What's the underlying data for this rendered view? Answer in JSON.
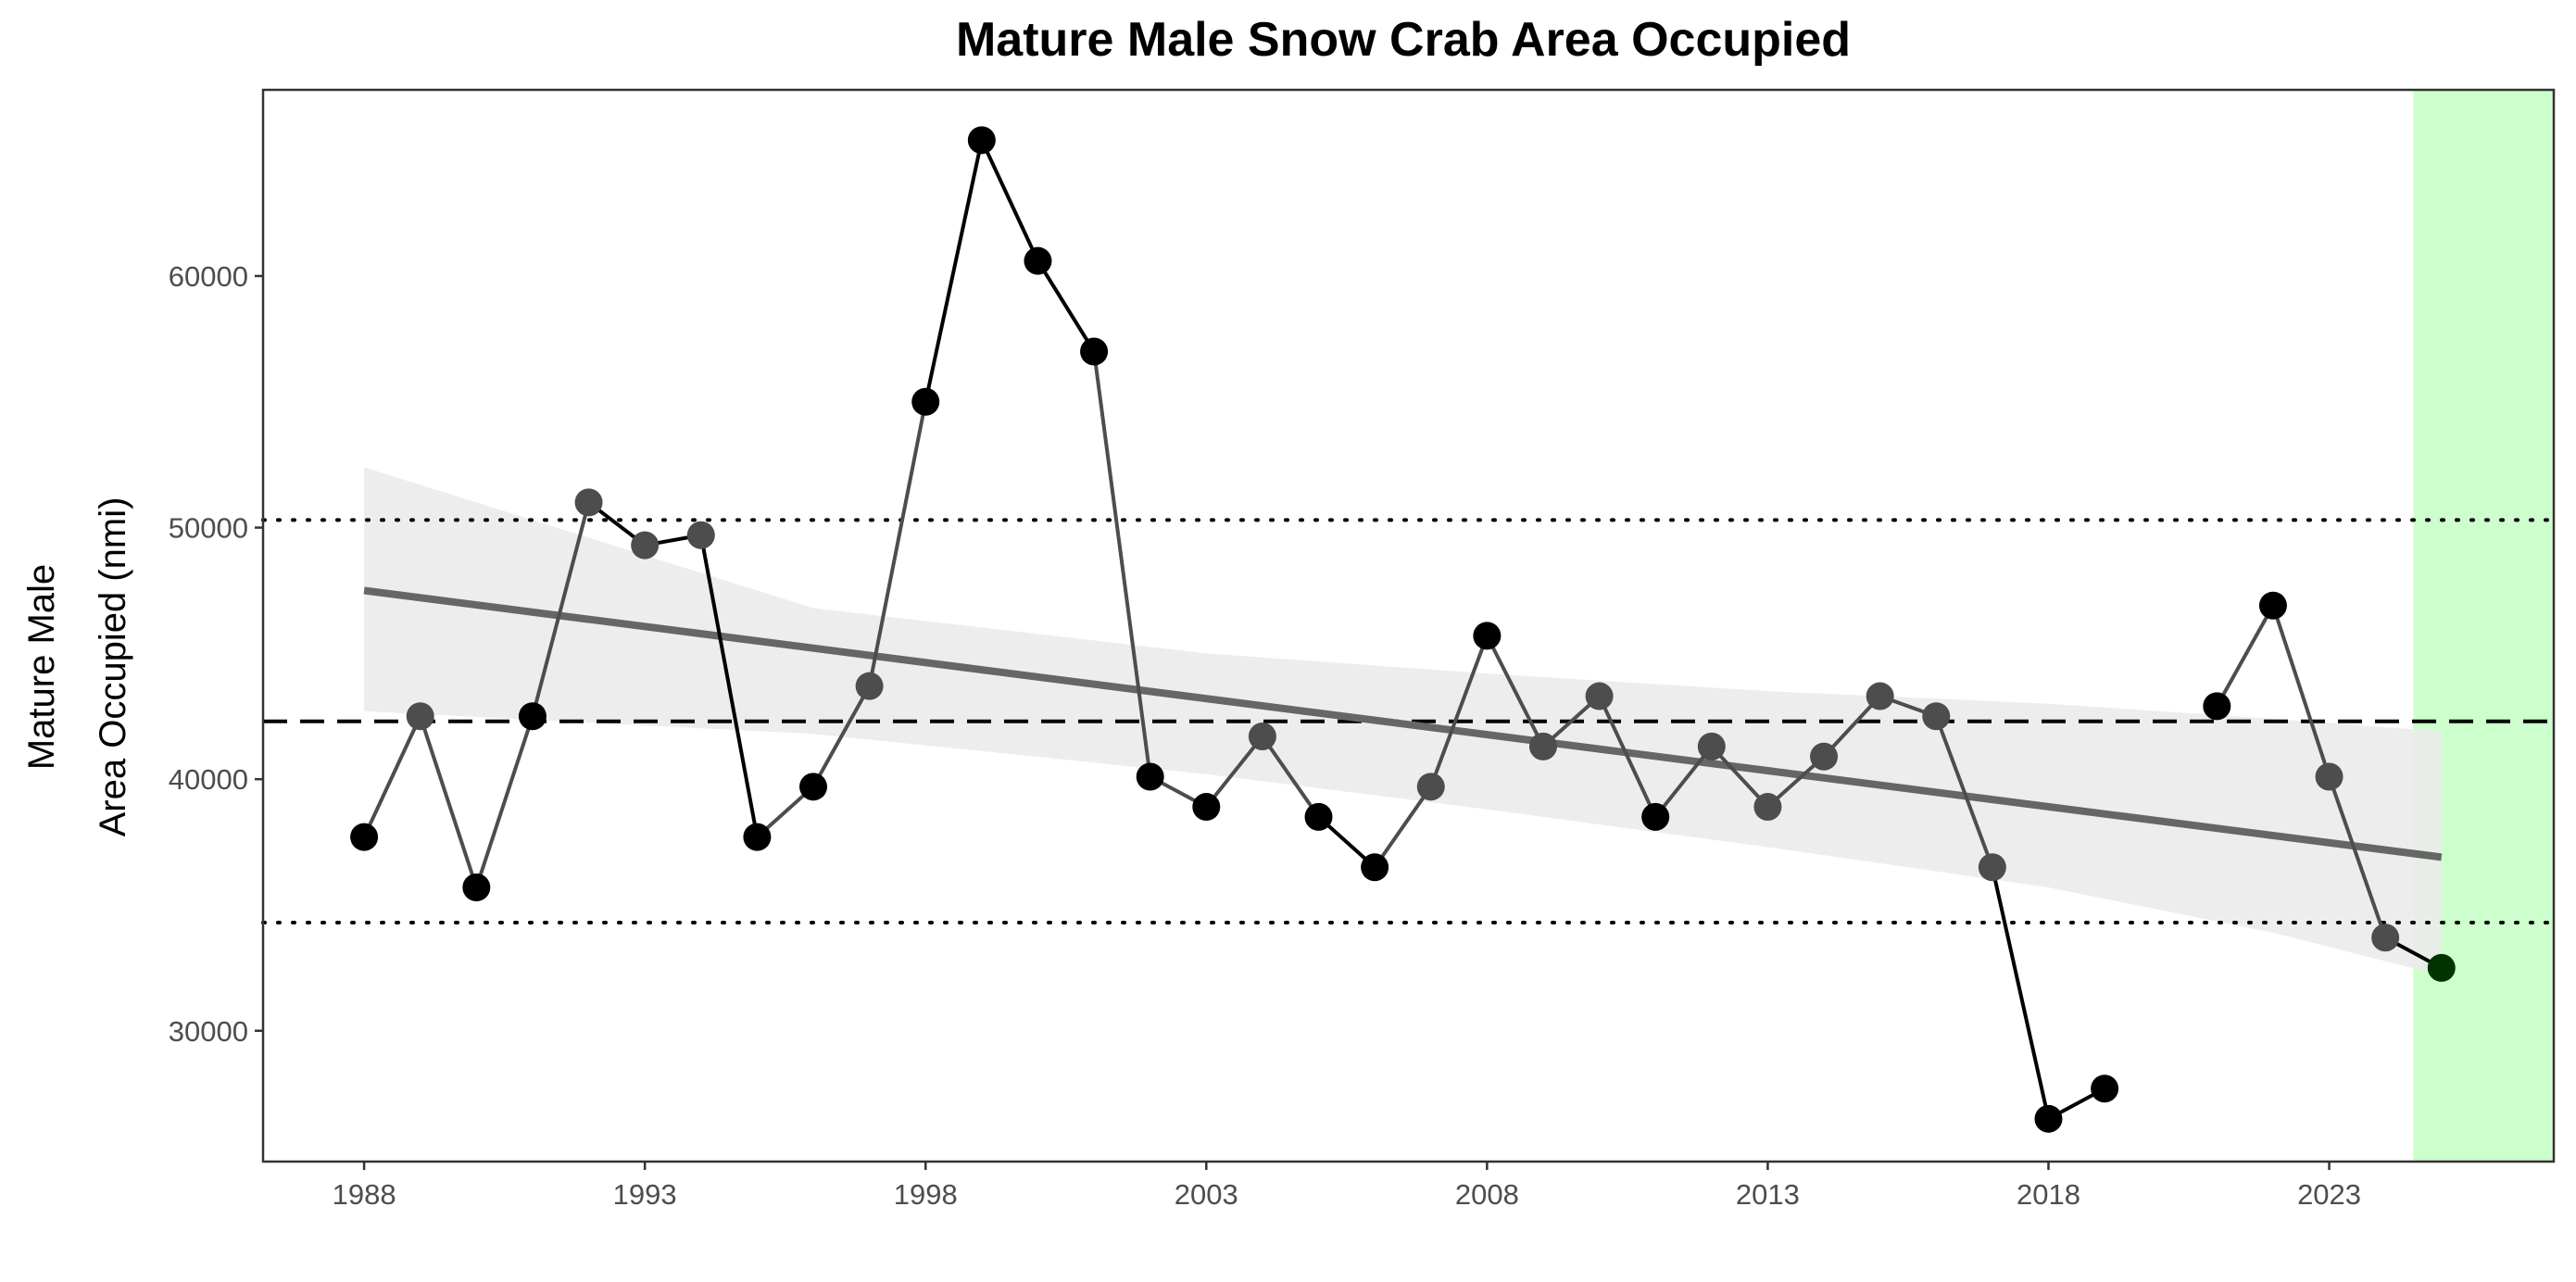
{
  "chart_data": {
    "type": "line",
    "title": "Mature Male Snow Crab Area Occupied",
    "xlabel": "",
    "ylabel_lines": [
      "Mature Male",
      "Area Occupied (nmi)"
    ],
    "xlim": [
      1986.2,
      2027.0
    ],
    "ylim": [
      24800,
      67400
    ],
    "x_ticks": [
      1988,
      1993,
      1998,
      2003,
      2008,
      2013,
      2018,
      2023
    ],
    "y_ticks": [
      30000,
      40000,
      50000,
      60000
    ],
    "grid": false,
    "legend": "none",
    "series": [
      {
        "x": [
          1988,
          1989,
          1990,
          1991,
          1992,
          1993,
          1994,
          1995,
          1996,
          1997,
          1998,
          1999,
          2000,
          2001,
          2002,
          2003,
          2004,
          2005,
          2006,
          2007,
          2008,
          2009,
          2010,
          2011,
          2012,
          2013,
          2014,
          2015,
          2016,
          2017,
          2018,
          2019,
          2020,
          2021,
          2022,
          2023,
          2024,
          2025
        ],
        "values": [
          37700,
          42500,
          35700,
          42500,
          51000,
          49300,
          49700,
          37700,
          39700,
          43700,
          55000,
          65400,
          60600,
          57000,
          40100,
          38900,
          41700,
          38500,
          36500,
          39700,
          45700,
          41300,
          43300,
          38500,
          41300,
          38900,
          40900,
          43300,
          42500,
          36500,
          26500,
          27700,
          null,
          42900,
          46900,
          40100,
          33700,
          32500
        ]
      }
    ],
    "mean_line": 42300,
    "sd_lines": [
      50300,
      34300
    ],
    "trend_line": {
      "x": [
        1988,
        2025
      ],
      "values": [
        47500,
        36900
      ]
    },
    "confidence_band": {
      "x": [
        1988,
        1996,
        2003,
        2008,
        2013,
        2018,
        2022,
        2025
      ],
      "upper": [
        52400,
        46800,
        45000,
        44200,
        43500,
        43000,
        42400,
        41900
      ],
      "lower": [
        42700,
        41800,
        40200,
        38800,
        37300,
        35700,
        33900,
        32200
      ]
    },
    "highlight_region": {
      "x": [
        2024.5,
        2027.0
      ],
      "color": "#ccffcc"
    },
    "colors": {
      "line": "#000000",
      "point_above_mean": "#000000",
      "point_near_mean": "#4d4d4d",
      "trend": "#666666",
      "band": "#ebebeb",
      "last_point": "#003300"
    }
  }
}
